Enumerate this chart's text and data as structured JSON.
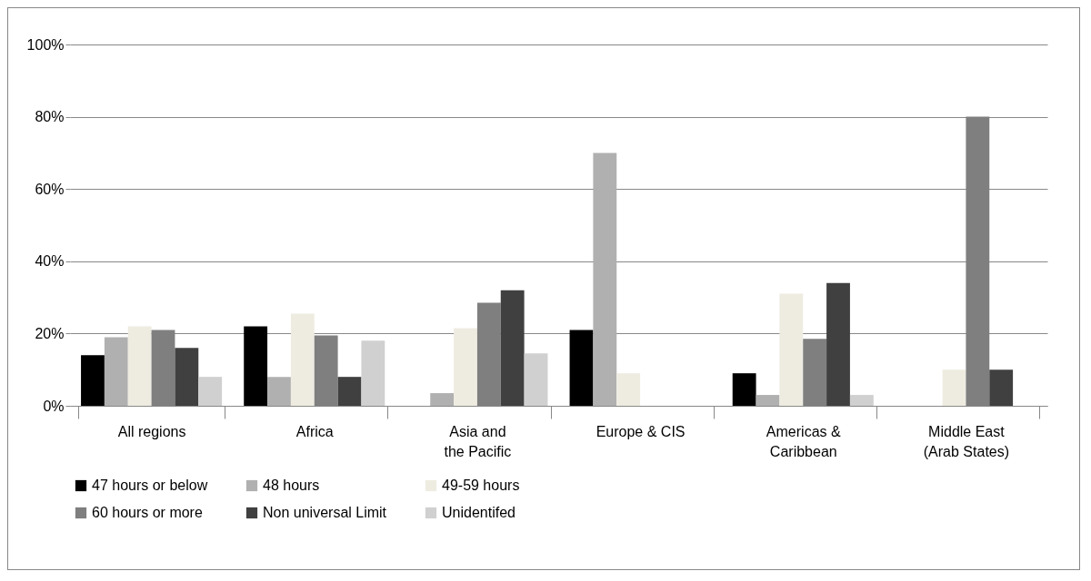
{
  "chart_data": {
    "type": "bar",
    "categories": [
      "All regions",
      "Africa",
      "Asia and the Pacific",
      "Europe & CIS",
      "Americas & Caribbean",
      "Middle East (Arab States)"
    ],
    "series": [
      {
        "name": "47 hours or below",
        "color": "#000000",
        "values": [
          14,
          22,
          0,
          21,
          9,
          0
        ]
      },
      {
        "name": "48 hours",
        "color": "#b0b0b0",
        "values": [
          19,
          8,
          3.5,
          70,
          3,
          0
        ]
      },
      {
        "name": "49-59 hours",
        "color": "#eeece1",
        "values": [
          22,
          25.5,
          21.5,
          9,
          31,
          10
        ]
      },
      {
        "name": "60 hours or more",
        "color": "#7f7f7f",
        "values": [
          21,
          19.5,
          28.5,
          0,
          18.5,
          80
        ]
      },
      {
        "name": "Non universal Limit",
        "color": "#404040",
        "values": [
          16,
          8,
          32,
          0,
          34,
          10
        ]
      },
      {
        "name": "Unidentifed",
        "color": "#d0d0d0",
        "values": [
          8,
          18,
          14.5,
          0,
          3,
          0
        ]
      }
    ],
    "ylim": [
      0,
      100
    ],
    "yticks": [
      {
        "value": 0,
        "label": "0%"
      },
      {
        "value": 20,
        "label": "20%"
      },
      {
        "value": 40,
        "label": "40%"
      },
      {
        "value": 60,
        "label": "60%"
      },
      {
        "value": 80,
        "label": "80%"
      },
      {
        "value": 100,
        "label": "100%"
      }
    ],
    "grid": "y",
    "legend": "bottom"
  }
}
